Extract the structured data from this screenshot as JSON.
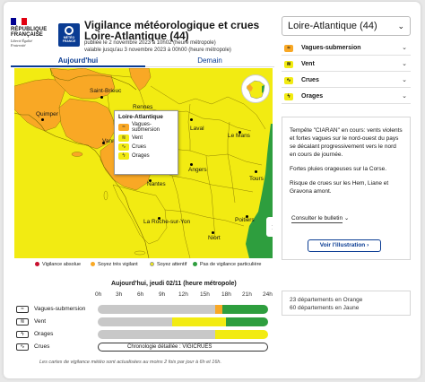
{
  "header": {
    "rf_name": "RÉPUBLIQUE FRANÇAISE",
    "rf_motto": "Liberté Égalité Fraternité",
    "mf_label": "MÉTÉO FRANCE",
    "title_line1": "Vigilance météorologique et crues",
    "title_line2": "Loire-Atlantique (44)",
    "published": "publiée le 2 novembre 2023 à 10h02 (heure métropole)",
    "valid_until": "valable jusqu'au 3 novembre 2023 à 00h00 (heure métropole)"
  },
  "tabs": [
    {
      "label": "Aujourd'hui",
      "active": true
    },
    {
      "label": "Demain",
      "active": false
    }
  ],
  "map": {
    "cities": [
      "Saint-Brieuc",
      "Rennes",
      "Quimper",
      "Vannes",
      "Laval",
      "Le Mans",
      "Nantes",
      "Angers",
      "Tours",
      "La Roche-sur-Yon",
      "Poitiers",
      "Niort"
    ],
    "popup": {
      "title": "Loire-Atlantique",
      "items": [
        "Vagues-submersion",
        "Vent",
        "Crues",
        "Orages"
      ]
    },
    "next_icon": "chevron-right-icon"
  },
  "legend": [
    {
      "label": "Vigilance absolue",
      "color": "#c8102e"
    },
    {
      "label": "Soyez très vigilant",
      "color": "#f9a825"
    },
    {
      "label": "Soyez attentif",
      "color": "#f2eb12"
    },
    {
      "label": "Pas de vigilance particulière",
      "color": "#2e9e3e"
    }
  ],
  "timeline": {
    "title": "Aujourd'hui, jeudi 02/11 (heure métropole)",
    "hours": [
      "0h",
      "3h",
      "6h",
      "9h",
      "12h",
      "15h",
      "18h",
      "21h",
      "24h"
    ],
    "rows": [
      {
        "label": "Vagues-submersion",
        "segments": [
          {
            "from": 0,
            "to": 16.5,
            "level": "grey"
          },
          {
            "from": 16.5,
            "to": 17.5,
            "level": "orange"
          },
          {
            "from": 17.5,
            "to": 24,
            "level": "green"
          }
        ]
      },
      {
        "label": "Vent",
        "segments": [
          {
            "from": 0,
            "to": 10.5,
            "level": "grey"
          },
          {
            "from": 10.5,
            "to": 18,
            "level": "yellow"
          },
          {
            "from": 18,
            "to": 24,
            "level": "green"
          }
        ]
      },
      {
        "label": "Orages",
        "segments": [
          {
            "from": 0,
            "to": 16.5,
            "level": "grey"
          },
          {
            "from": 16.5,
            "to": 24,
            "level": "yellow"
          }
        ]
      }
    ],
    "crues_label": "Crues",
    "chrono_label": "Chronologie détaillée : VIGICRUES",
    "level_colors": {
      "grey": "#c8c8c8",
      "orange": "#f9a825",
      "yellow": "#f2eb12",
      "green": "#2e9e3e"
    }
  },
  "footnote": "Les cartes de vigilance météo sont actualisées au moins 2 fois par jour à 6h et 16h.",
  "sidebar": {
    "department": "Loire-Atlantique (44)",
    "phenomena": [
      {
        "label": "Vagues-submersion",
        "level": "orange"
      },
      {
        "label": "Vent",
        "level": "yellow"
      },
      {
        "label": "Crues",
        "level": "yellow"
      },
      {
        "label": "Orages",
        "level": "yellow"
      }
    ],
    "bulletin": [
      "Tempête \"CIARAN\" en cours: vents violents et fortes vagues sur le nord-ouest du pays se décalant progressivement vers le nord en cours de journée.",
      "Fortes pluies orageuses sur la Corse.",
      "Risque de crues sur les Hem, Liane et Gravona amont."
    ],
    "consult_label": "Consulter le bulletin",
    "illustration_button": "Voir l'illustration",
    "stats": [
      "23 départements en Orange",
      "60 départements en Jaune"
    ]
  }
}
